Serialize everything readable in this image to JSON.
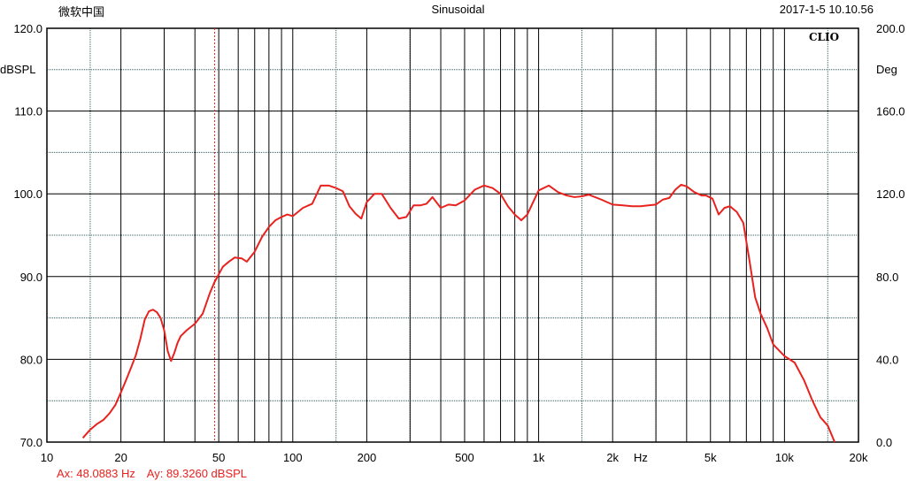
{
  "header": {
    "left": "微软中国",
    "title": "Sinusoidal",
    "datetime": "2017-1-5 10.10.56"
  },
  "logo": "CLIO",
  "cursor_readout": {
    "ax": "Ax: 48.0883 Hz",
    "ay": "Ay: 89.3260 dBSPL"
  },
  "colors": {
    "curve": "#e8221e",
    "cursor": "#e8221e",
    "grid_major": "#000000",
    "grid_minor": "#2f5f5f"
  },
  "chart_data": {
    "type": "line",
    "title": "Sinusoidal",
    "x_scale": "log",
    "xlim": [
      10,
      20000
    ],
    "ylim": [
      70,
      120
    ],
    "ylim_right": [
      0,
      200
    ],
    "ylabel": "dBSPL",
    "ylabel_right": "Deg",
    "xunit_label": "Hz",
    "x_ticks": [
      {
        "value": 10,
        "label": "10"
      },
      {
        "value": 20,
        "label": "20"
      },
      {
        "value": 50,
        "label": "50"
      },
      {
        "value": 100,
        "label": "100"
      },
      {
        "value": 200,
        "label": "200"
      },
      {
        "value": 500,
        "label": "500"
      },
      {
        "value": 1000,
        "label": "1k"
      },
      {
        "value": 2000,
        "label": "2k"
      },
      {
        "value": 5000,
        "label": "5k"
      },
      {
        "value": 10000,
        "label": "10k"
      },
      {
        "value": 20000,
        "label": "20k"
      }
    ],
    "y_ticks_left": [
      "70.0",
      "80.0",
      "90.0",
      "100.0",
      "110.0",
      "120.0"
    ],
    "y_ticks_right": [
      "0.0",
      "40.0",
      "80.0",
      "120.0",
      "160.0",
      "200.0"
    ],
    "cursor_x": 48.0883,
    "series": [
      {
        "x": [
          14,
          15,
          16,
          17,
          18,
          19,
          20,
          21,
          22,
          23,
          24,
          25,
          26,
          27,
          28,
          29,
          30,
          31,
          32,
          33,
          34,
          35,
          37,
          40,
          43,
          46,
          48,
          52,
          55,
          58,
          62,
          65,
          70,
          75,
          80,
          85,
          90,
          95,
          100,
          110,
          120,
          130,
          140,
          150,
          160,
          170,
          180,
          190,
          200,
          215,
          230,
          250,
          270,
          290,
          310,
          330,
          350,
          370,
          400,
          430,
          460,
          500,
          550,
          600,
          650,
          700,
          750,
          800,
          850,
          900,
          950,
          1000,
          1100,
          1200,
          1300,
          1400,
          1500,
          1600,
          1800,
          2000,
          2200,
          2400,
          2600,
          2800,
          3000,
          3200,
          3400,
          3600,
          3800,
          4000,
          4300,
          4600,
          4800,
          5100,
          5400,
          5700,
          6000,
          6400,
          6800,
          7200,
          7600,
          8000,
          8500,
          9000,
          10000,
          11000,
          12000,
          13000,
          14000,
          15000,
          16000
        ],
        "y": [
          70.5,
          71.5,
          72.2,
          72.7,
          73.5,
          74.5,
          76.0,
          77.5,
          79.0,
          80.5,
          82.5,
          84.8,
          85.8,
          86.0,
          85.7,
          85.0,
          83.5,
          81.0,
          79.8,
          80.8,
          82.0,
          82.8,
          83.5,
          84.3,
          85.5,
          88.0,
          89.3,
          91.2,
          91.8,
          92.3,
          92.2,
          91.8,
          93.0,
          94.8,
          96.0,
          96.8,
          97.2,
          97.5,
          97.3,
          98.3,
          98.8,
          101.0,
          101.0,
          100.7,
          100.3,
          98.5,
          97.6,
          97.0,
          99.0,
          100.0,
          100.0,
          98.3,
          97.0,
          97.2,
          98.6,
          98.6,
          98.8,
          99.6,
          98.3,
          98.7,
          98.6,
          99.2,
          100.5,
          101.0,
          100.7,
          100.0,
          98.5,
          97.5,
          96.8,
          97.5,
          99.0,
          100.4,
          101.0,
          100.2,
          99.8,
          99.6,
          99.7,
          99.9,
          99.3,
          98.7,
          98.6,
          98.5,
          98.5,
          98.6,
          98.7,
          99.3,
          99.5,
          100.5,
          101.1,
          100.9,
          100.2,
          99.8,
          99.8,
          99.4,
          97.5,
          98.3,
          98.5,
          97.8,
          96.5,
          92.0,
          87.5,
          85.5,
          83.8,
          81.8,
          80.4,
          79.6,
          77.5,
          75.0,
          73.0,
          72.0,
          70.0
        ]
      }
    ]
  }
}
